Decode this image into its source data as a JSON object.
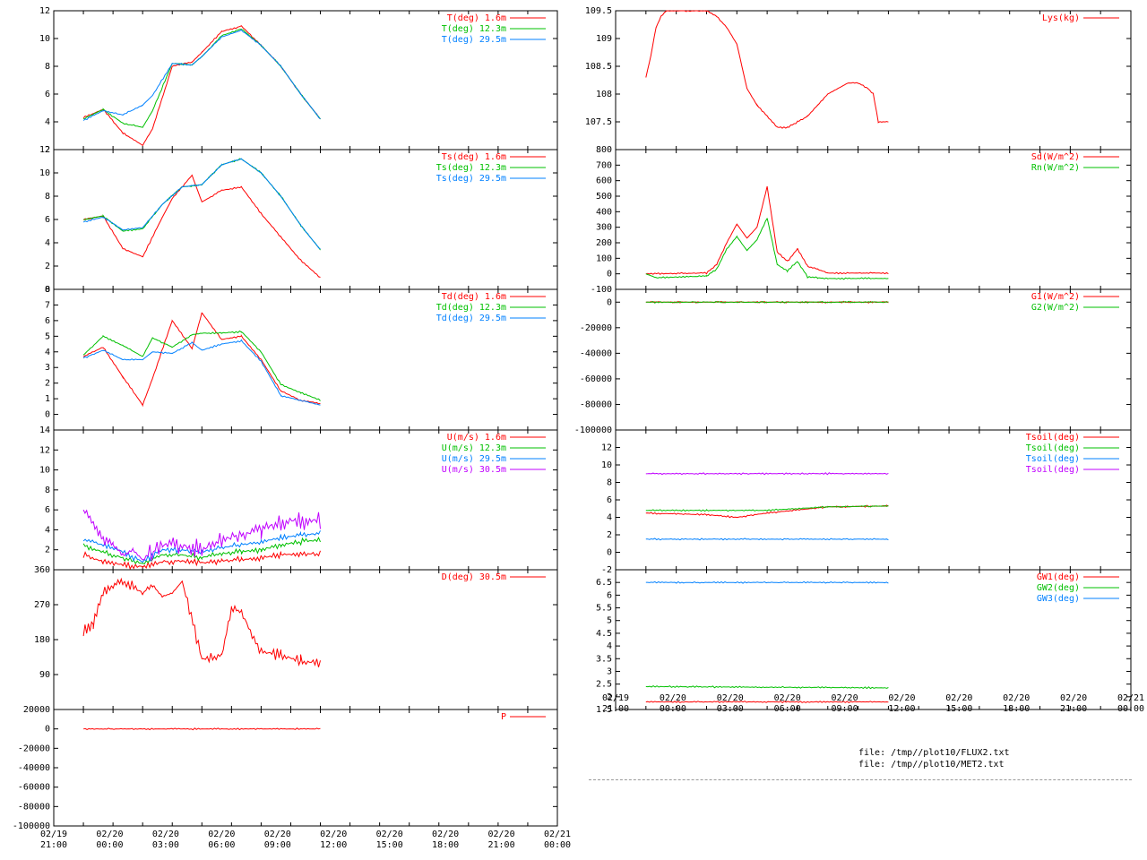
{
  "colors": {
    "red": "#ff0000",
    "green": "#00c000",
    "blue": "#0080ff",
    "magenta": "#c000ff",
    "axis": "#000000"
  },
  "time_axis": {
    "range_hours": [
      -3,
      48
    ],
    "ticks_hours": [
      -3,
      0,
      3,
      6,
      9,
      12,
      15,
      18,
      21,
      24,
      27,
      30,
      33,
      36,
      39,
      42,
      45,
      48
    ],
    "tick_labels_left": [
      [
        "02/19",
        "21:00"
      ],
      [
        "02/20",
        "00:00"
      ],
      [
        "02/20",
        "03:00"
      ],
      [
        "02/20",
        "06:00"
      ],
      [
        "02/20",
        "09:00"
      ],
      [
        "02/20",
        "12:00"
      ],
      [
        "02/20",
        "15:00"
      ],
      [
        "02/20",
        "18:00"
      ],
      [
        "02/20",
        "21:00"
      ],
      [
        "02/21",
        "00:00"
      ]
    ],
    "tick_labels_right": [
      [
        "02/19",
        "21:00"
      ],
      [
        "02/20",
        "00:00"
      ],
      [
        "02/20",
        "03:00"
      ],
      [
        "02/20",
        "06:00"
      ],
      [
        "02/20",
        "09:00"
      ],
      [
        "02/20",
        "12:00"
      ],
      [
        "02/20",
        "15:00"
      ],
      [
        "02/20",
        "18:00"
      ],
      [
        "02/20",
        "21:00"
      ],
      [
        "02/21",
        "00:00"
      ]
    ]
  },
  "files": [
    "file: /tmp//plot10/FLUX2.txt",
    "file: /tmp//plot10/MET2.txt"
  ],
  "chart_data": [
    {
      "id": "temp",
      "type": "line",
      "ylim": [
        2,
        12
      ],
      "yticks": [
        2,
        4,
        6,
        8,
        10,
        12
      ],
      "series": [
        {
          "name": "T(deg)  1.6m",
          "color": "red",
          "x": [
            0,
            2,
            4,
            6,
            7,
            9,
            11,
            12,
            14,
            16,
            18,
            20,
            22,
            24
          ],
          "y": [
            4.3,
            4.9,
            3.2,
            2.3,
            3.5,
            8.0,
            8.3,
            9.0,
            10.5,
            10.9,
            9.5,
            8.0,
            6.0,
            4.2
          ]
        },
        {
          "name": "T(deg) 12.3m",
          "color": "green",
          "x": [
            0,
            2,
            4,
            6,
            7,
            9,
            11,
            12,
            14,
            16,
            18,
            20,
            22,
            24
          ],
          "y": [
            4.2,
            4.9,
            3.9,
            3.6,
            4.8,
            8.2,
            8.1,
            8.7,
            10.2,
            10.7,
            9.5,
            8.0,
            6.0,
            4.2
          ]
        },
        {
          "name": "T(deg) 29.5m",
          "color": "blue",
          "x": [
            0,
            2,
            4,
            6,
            7,
            9,
            11,
            12,
            14,
            16,
            18,
            20,
            22,
            24
          ],
          "y": [
            4.1,
            4.8,
            4.5,
            5.2,
            5.9,
            8.2,
            8.1,
            8.7,
            10.1,
            10.6,
            9.5,
            8.0,
            6.0,
            4.2
          ]
        }
      ]
    },
    {
      "id": "tsurf",
      "type": "line",
      "ylim": [
        0,
        12
      ],
      "yticks": [
        0,
        2,
        4,
        6,
        8,
        10,
        12
      ],
      "series": [
        {
          "name": "Ts(deg)  1.6m",
          "color": "red",
          "x": [
            0,
            2,
            4,
            6,
            8,
            9,
            11,
            12,
            14,
            16,
            18,
            20,
            22,
            24
          ],
          "y": [
            6.0,
            6.3,
            3.5,
            2.8,
            6.2,
            7.8,
            9.8,
            7.5,
            8.5,
            8.8,
            6.5,
            4.5,
            2.5,
            1.0
          ]
        },
        {
          "name": "Ts(deg) 12.3m",
          "color": "green",
          "x": [
            0,
            2,
            4,
            6,
            8,
            10,
            12,
            14,
            16,
            18,
            20,
            22,
            24
          ],
          "y": [
            6.0,
            6.3,
            5.0,
            5.2,
            7.3,
            8.8,
            9.0,
            10.7,
            11.2,
            10.0,
            8.0,
            5.5,
            3.4
          ]
        },
        {
          "name": "Ts(deg) 29.5m",
          "color": "blue",
          "x": [
            0,
            2,
            4,
            6,
            8,
            10,
            12,
            14,
            16,
            18,
            20,
            22,
            24
          ],
          "y": [
            5.8,
            6.2,
            5.1,
            5.3,
            7.3,
            8.8,
            9.0,
            10.7,
            11.2,
            10.0,
            8.0,
            5.5,
            3.4
          ]
        }
      ]
    },
    {
      "id": "dew",
      "type": "line",
      "ylim": [
        -1,
        8
      ],
      "yticks": [
        0,
        1,
        2,
        3,
        4,
        5,
        6,
        7,
        8
      ],
      "series": [
        {
          "name": "Td(deg)  1.6m",
          "color": "red",
          "x": [
            0,
            2,
            4,
            6,
            7,
            9,
            11,
            12,
            14,
            16,
            18,
            20,
            22,
            24
          ],
          "y": [
            3.7,
            4.3,
            2.4,
            0.6,
            2.3,
            6.0,
            4.2,
            6.5,
            4.8,
            5.0,
            3.5,
            1.5,
            0.9,
            0.7
          ]
        },
        {
          "name": "Td(deg) 12.3m",
          "color": "green",
          "x": [
            0,
            2,
            4,
            6,
            7,
            9,
            11,
            12,
            14,
            16,
            18,
            20,
            22,
            24
          ],
          "y": [
            3.8,
            5.0,
            4.4,
            3.7,
            4.9,
            4.3,
            5.1,
            5.2,
            5.2,
            5.3,
            4.0,
            1.9,
            1.4,
            0.9
          ]
        },
        {
          "name": "Td(deg) 29.5m",
          "color": "blue",
          "x": [
            0,
            2,
            4,
            6,
            7,
            9,
            11,
            12,
            14,
            16,
            18,
            20,
            22,
            24
          ],
          "y": [
            3.6,
            4.1,
            3.5,
            3.5,
            4.0,
            3.9,
            4.6,
            4.1,
            4.5,
            4.7,
            3.4,
            1.2,
            0.9,
            0.6
          ]
        }
      ]
    },
    {
      "id": "wind",
      "type": "line",
      "ylim": [
        0,
        14
      ],
      "yticks": [
        2,
        4,
        6,
        8,
        10,
        12,
        14
      ],
      "series": [
        {
          "name": "U(m/s)  1.6m",
          "color": "red",
          "x": [
            0,
            2,
            4,
            6,
            8,
            10,
            12,
            14,
            16,
            18,
            20,
            22,
            24
          ],
          "y": [
            1.5,
            0.8,
            0.5,
            0.3,
            0.8,
            0.9,
            0.7,
            0.9,
            1.0,
            1.2,
            1.5,
            1.6,
            1.6
          ]
        },
        {
          "name": "U(m/s) 12.3m",
          "color": "green",
          "x": [
            0,
            2,
            4,
            6,
            8,
            10,
            12,
            14,
            16,
            18,
            20,
            22,
            24
          ],
          "y": [
            2.4,
            1.8,
            1.2,
            0.6,
            1.5,
            1.5,
            1.2,
            1.6,
            1.8,
            2.0,
            2.5,
            2.8,
            3.0
          ]
        },
        {
          "name": "U(m/s) 29.5m",
          "color": "blue",
          "x": [
            0,
            2,
            4,
            6,
            8,
            10,
            12,
            14,
            16,
            18,
            20,
            22,
            24
          ],
          "y": [
            3.0,
            2.5,
            1.8,
            0.8,
            2.0,
            2.0,
            1.8,
            2.2,
            2.5,
            2.8,
            3.2,
            3.5,
            3.6
          ]
        },
        {
          "name": "U(m/s) 30.5m",
          "color": "magenta",
          "x": [
            0,
            1,
            2,
            3,
            4,
            5,
            6,
            8,
            10,
            12,
            14,
            16,
            18,
            20,
            22,
            24
          ],
          "y": [
            6.0,
            4.5,
            3.0,
            2.5,
            1.5,
            2.0,
            1.0,
            2.5,
            2.5,
            2.0,
            3.0,
            3.5,
            4.0,
            4.8,
            5.0,
            5.0
          ]
        }
      ]
    },
    {
      "id": "dir",
      "type": "line",
      "ylim": [
        0,
        360
      ],
      "yticks": [
        90,
        180,
        270,
        360
      ],
      "series": [
        {
          "name": "D(deg)  30.5m",
          "color": "red",
          "x": [
            0,
            1,
            2,
            3,
            4,
            6,
            7,
            8,
            9,
            10,
            12,
            14,
            15,
            16,
            18,
            20,
            22,
            24
          ],
          "y": [
            200,
            220,
            300,
            320,
            330,
            300,
            320,
            290,
            300,
            330,
            130,
            140,
            260,
            250,
            150,
            140,
            125,
            120
          ]
        }
      ]
    },
    {
      "id": "precip",
      "type": "line",
      "ylim": [
        -100000,
        20000
      ],
      "yticks": [
        -100000,
        -80000,
        -60000,
        -40000,
        -20000,
        0,
        20000
      ],
      "series": [
        {
          "name": "P",
          "color": "red",
          "x": [
            0,
            24
          ],
          "y": [
            0,
            0
          ]
        }
      ]
    },
    {
      "id": "lys",
      "type": "line",
      "ylim": [
        107,
        109.5
      ],
      "yticks": [
        107.5,
        108,
        108.5,
        109,
        109.5
      ],
      "series": [
        {
          "name": "Lys(kg)",
          "color": "red",
          "x": [
            0,
            0.5,
            1,
            1.5,
            2,
            4,
            6,
            7,
            8,
            9,
            9.5,
            10,
            11,
            12,
            13,
            14,
            15,
            16,
            17,
            18,
            19,
            20,
            21,
            22,
            22.5,
            23,
            24
          ],
          "y": [
            108.3,
            108.7,
            109.2,
            109.4,
            109.5,
            109.5,
            109.5,
            109.4,
            109.2,
            108.9,
            108.5,
            108.1,
            107.8,
            107.6,
            107.4,
            107.4,
            107.5,
            107.6,
            107.8,
            108.0,
            108.1,
            108.2,
            108.2,
            108.1,
            108.0,
            107.5,
            107.5
          ]
        }
      ]
    },
    {
      "id": "rad",
      "type": "line",
      "ylim": [
        -100,
        800
      ],
      "yticks": [
        -100,
        0,
        100,
        200,
        300,
        400,
        500,
        600,
        700,
        800
      ],
      "series": [
        {
          "name": "Sd(W/m^2)",
          "color": "red",
          "x": [
            0,
            6,
            7,
            8,
            9,
            10,
            11,
            12,
            13,
            14,
            15,
            16,
            17,
            18,
            24
          ],
          "y": [
            0,
            5,
            60,
            200,
            320,
            230,
            300,
            560,
            140,
            80,
            160,
            50,
            30,
            5,
            5
          ]
        },
        {
          "name": "Rn(W/m^2)",
          "color": "green",
          "x": [
            0,
            1,
            6,
            7,
            8,
            9,
            10,
            11,
            12,
            13,
            14,
            15,
            16,
            17,
            18,
            24
          ],
          "y": [
            0,
            -25,
            -15,
            30,
            160,
            240,
            150,
            220,
            360,
            60,
            20,
            80,
            -20,
            -25,
            -30,
            -30
          ]
        }
      ]
    },
    {
      "id": "soilflux",
      "type": "line",
      "ylim": [
        -100000,
        10000
      ],
      "yticks": [
        -100000,
        -80000,
        -60000,
        -40000,
        -20000,
        0
      ],
      "series": [
        {
          "name": "G1(W/m^2)",
          "color": "red",
          "x": [
            0,
            24
          ],
          "y": [
            0,
            0
          ]
        },
        {
          "name": "G2(W/m^2)",
          "color": "green",
          "x": [
            0,
            24
          ],
          "y": [
            0,
            0
          ]
        }
      ]
    },
    {
      "id": "tsoil",
      "type": "line",
      "ylim": [
        -2,
        14
      ],
      "yticks": [
        -2,
        0,
        2,
        4,
        6,
        8,
        10,
        12
      ],
      "series": [
        {
          "name": "Tsoil(deg)",
          "color": "red",
          "x": [
            0,
            6,
            9,
            12,
            18,
            24
          ],
          "y": [
            4.5,
            4.3,
            4.0,
            4.5,
            5.2,
            5.3
          ]
        },
        {
          "name": "Tsoil(deg)",
          "color": "green",
          "x": [
            0,
            6,
            12,
            18,
            24
          ],
          "y": [
            4.8,
            4.8,
            4.8,
            5.2,
            5.3
          ]
        },
        {
          "name": "Tsoil(deg)",
          "color": "blue",
          "x": [
            0,
            24
          ],
          "y": [
            1.5,
            1.5
          ]
        },
        {
          "name": "Tsoil(deg)",
          "color": "magenta",
          "x": [
            0,
            24
          ],
          "y": [
            9.0,
            9.0
          ]
        }
      ]
    },
    {
      "id": "gw",
      "type": "line",
      "ylim": [
        1.5,
        7
      ],
      "yticks": [
        1.5,
        2,
        2.5,
        3,
        3.5,
        4,
        4.5,
        5,
        5.5,
        6,
        6.5
      ],
      "series": [
        {
          "name": "GW1(deg)",
          "color": "red",
          "x": [
            0,
            24
          ],
          "y": [
            1.8,
            1.8
          ]
        },
        {
          "name": "GW2(deg)",
          "color": "green",
          "x": [
            0,
            2,
            24
          ],
          "y": [
            2.4,
            2.4,
            2.35
          ]
        },
        {
          "name": "GW3(deg)",
          "color": "blue",
          "x": [
            0,
            24
          ],
          "y": [
            6.5,
            6.5
          ]
        }
      ]
    }
  ]
}
